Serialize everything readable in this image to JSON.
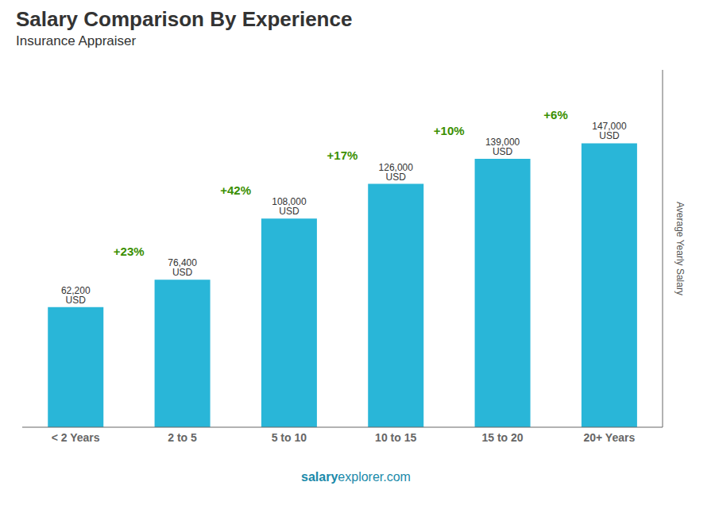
{
  "chart_data": {
    "type": "bar",
    "title": "Salary Comparison By Experience",
    "subtitle": "Insurance Appraiser",
    "categories": [
      "< 2 Years",
      "2 to 5",
      "5 to 10",
      "10 to 15",
      "15 to 20",
      "20+ Years"
    ],
    "values": [
      62200,
      76400,
      108000,
      126000,
      139000,
      147000
    ],
    "value_labels": [
      "62,200 USD",
      "76,400 USD",
      "108,000 USD",
      "126,000 USD",
      "139,000 USD",
      "147,000 USD"
    ],
    "data_labels": true,
    "annotations": [
      null,
      "+23%",
      "+42%",
      "+17%",
      "+10%",
      "+6%"
    ],
    "ylabel": "Average Yearly Salary",
    "footer": [
      "salary",
      "explorer.com"
    ],
    "color": "#29b6d8",
    "ylim": [
      0,
      185000
    ],
    "tick_labels": "x",
    "grid": false
  }
}
